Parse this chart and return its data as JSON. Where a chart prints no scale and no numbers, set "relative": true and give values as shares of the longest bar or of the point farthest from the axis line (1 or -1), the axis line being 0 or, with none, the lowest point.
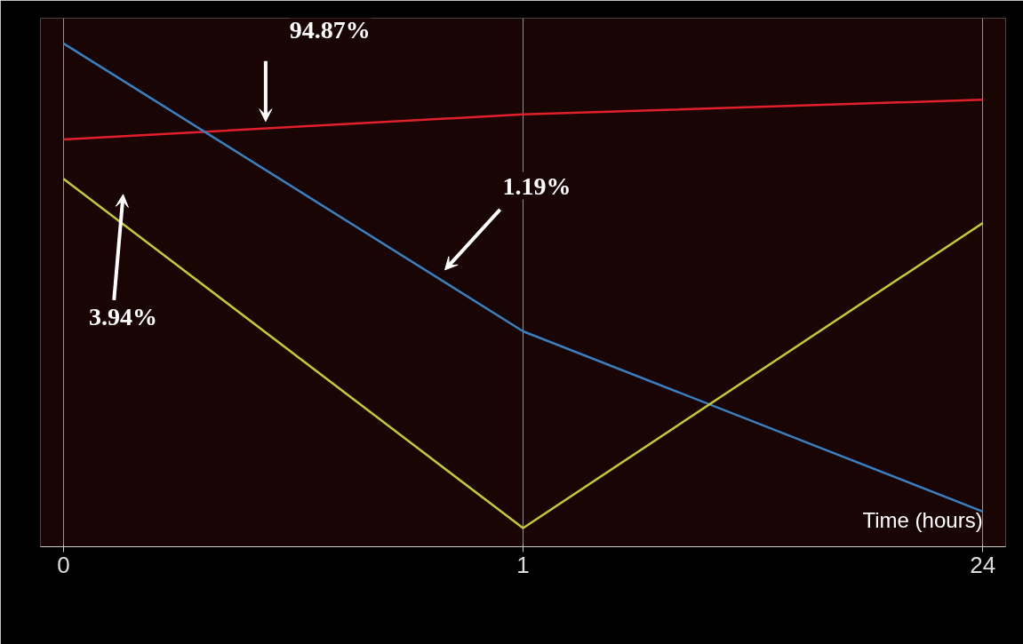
{
  "chart_data": {
    "type": "line",
    "relative": true,
    "xlabel": "Time (hours)",
    "categories": [
      "0",
      "1",
      "24"
    ],
    "series": [
      {
        "color": "#e0202a",
        "values": [
          0.809,
          0.859,
          0.888
        ]
      },
      {
        "color": "#3a7fc0",
        "values": [
          1,
          0.428,
          0.07
        ]
      },
      {
        "color": "#c8c830",
        "values": [
          0.731,
          0.037,
          0.643
        ]
      }
    ],
    "annotations": [
      "94.87%",
      "1.19%",
      "3.94%"
    ],
    "grid": "x",
    "marker": "none",
    "line_style": "solid"
  }
}
